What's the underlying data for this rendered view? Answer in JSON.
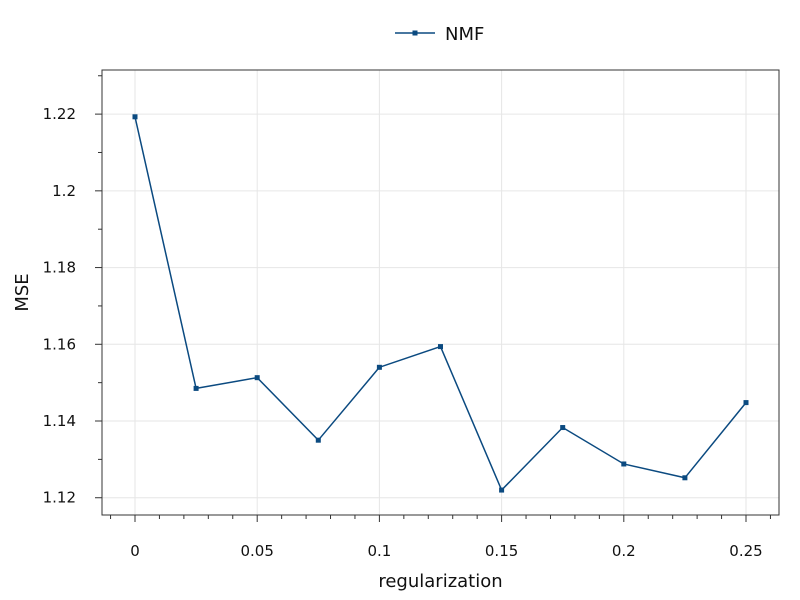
{
  "chart_data": {
    "type": "line",
    "title": "",
    "xlabel": "regularization",
    "ylabel": "MSE",
    "xlim": [
      -0.0135,
      0.2635
    ],
    "ylim": [
      1.1155,
      1.2315
    ],
    "xticks": [
      0,
      0.05,
      0.1,
      0.15,
      0.2,
      0.25
    ],
    "xtick_labels": [
      "0",
      "0.05",
      "0.1",
      "0.15",
      "0.2",
      "0.25"
    ],
    "xminor_step": 0.01,
    "yticks": [
      1.12,
      1.14,
      1.16,
      1.18,
      1.2,
      1.22
    ],
    "ytick_labels": [
      "1.12",
      "1.14",
      "1.16",
      "1.18",
      "1.2",
      "1.22"
    ],
    "yminor_step": 0.01,
    "grid": true,
    "legend": {
      "position": "top-center"
    },
    "colors": {
      "series": "#0b4a80"
    },
    "series": [
      {
        "name": "NMF",
        "x": [
          0,
          0.025,
          0.05,
          0.075,
          0.1,
          0.125,
          0.15,
          0.175,
          0.2,
          0.225,
          0.25
        ],
        "y": [
          1.2193,
          1.1485,
          1.1513,
          1.135,
          1.154,
          1.1594,
          1.122,
          1.1383,
          1.1288,
          1.1252,
          1.1448
        ]
      }
    ]
  }
}
